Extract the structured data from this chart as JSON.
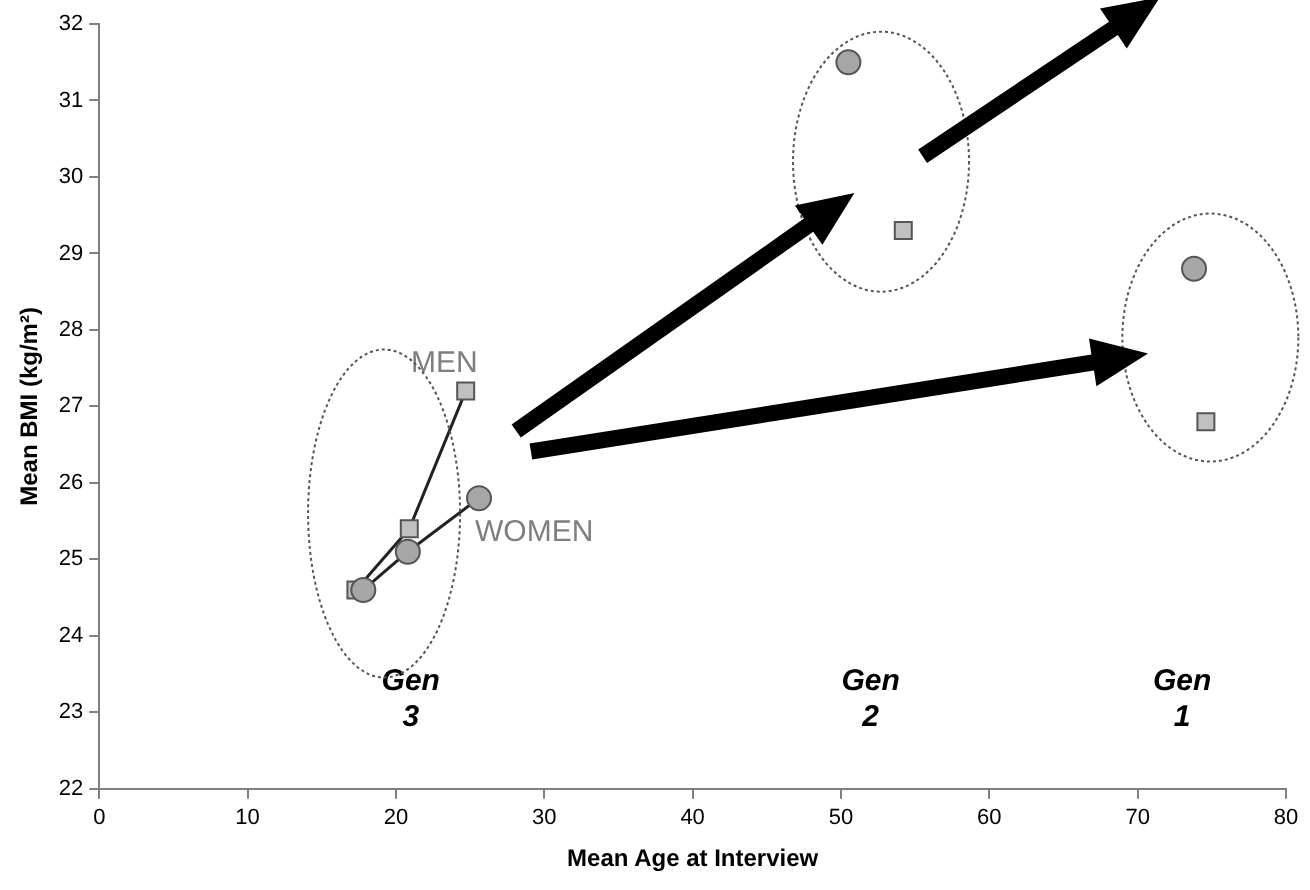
{
  "chart_data": {
    "type": "line",
    "xlabel": "Mean Age at Interview",
    "ylabel": "Mean BMI (kg/m²)",
    "xlim": [
      0,
      80
    ],
    "xticks": [
      0,
      10,
      20,
      30,
      40,
      50,
      60,
      70,
      80
    ],
    "ylim": [
      22,
      32
    ],
    "yticks": [
      22,
      23,
      24,
      25,
      26,
      27,
      28,
      29,
      30,
      31,
      32
    ],
    "grid": false,
    "legend": false,
    "series": [
      {
        "name": "MEN",
        "marker": "square",
        "color": "#c0c0c0",
        "x": [
          17.3,
          20.9,
          24.7
        ],
        "values": [
          24.6,
          25.4,
          27.2
        ]
      },
      {
        "name": "WOMEN",
        "marker": "circle",
        "color": "#a6a6a6",
        "x": [
          17.8,
          20.8,
          25.6
        ],
        "values": [
          24.6,
          25.1,
          25.8
        ]
      },
      {
        "type": "scatter",
        "marker": "square",
        "color": "#c0c0c0",
        "x": [
          54.2,
          74.6
        ],
        "values": [
          29.3,
          26.8
        ]
      },
      {
        "type": "scatter",
        "marker": "circle",
        "color": "#a6a6a6",
        "x": [
          50.5,
          73.8
        ],
        "values": [
          31.5,
          28.8
        ]
      }
    ],
    "annotations": [
      "Gen 3",
      "Gen 2",
      "Gen 1"
    ]
  }
}
